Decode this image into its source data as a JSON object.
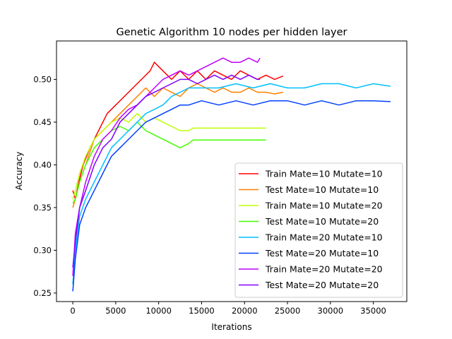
{
  "chart_data": {
    "type": "line",
    "title": "Genetic Algorithm 10 nodes per hidden layer",
    "xlabel": "Iterations",
    "ylabel": "Accuracy",
    "xlim": [
      -1900,
      38900
    ],
    "ylim": [
      0.24,
      0.545
    ],
    "xticks": [
      0,
      5000,
      10000,
      15000,
      20000,
      25000,
      30000,
      35000
    ],
    "yticks": [
      0.25,
      0.3,
      0.35,
      0.4,
      0.45,
      0.5
    ],
    "ytick_labels": [
      "0.25",
      "0.30",
      "0.35",
      "0.40",
      "0.45",
      "0.50"
    ],
    "grid": false,
    "legend_position": "lower-right",
    "series": [
      {
        "name": "Train Mate=10 Mutate=10",
        "color": "#ff0000",
        "points": [
          [
            0,
            0.37
          ],
          [
            300,
            0.36
          ],
          [
            700,
            0.38
          ],
          [
            1200,
            0.4
          ],
          [
            2000,
            0.42
          ],
          [
            3000,
            0.44
          ],
          [
            4000,
            0.46
          ],
          [
            5000,
            0.47
          ],
          [
            6000,
            0.48
          ],
          [
            7000,
            0.49
          ],
          [
            8000,
            0.5
          ],
          [
            9000,
            0.51
          ],
          [
            9500,
            0.52
          ],
          [
            10500,
            0.51
          ],
          [
            11500,
            0.5
          ],
          [
            12500,
            0.51
          ],
          [
            13500,
            0.5
          ],
          [
            14500,
            0.51
          ],
          [
            15500,
            0.5
          ],
          [
            16500,
            0.51
          ],
          [
            17500,
            0.505
          ],
          [
            18500,
            0.5
          ],
          [
            19500,
            0.51
          ],
          [
            20500,
            0.505
          ],
          [
            21500,
            0.5
          ],
          [
            22500,
            0.505
          ],
          [
            23500,
            0.5
          ],
          [
            24500,
            0.504
          ]
        ]
      },
      {
        "name": "Test Mate=10 Mutate=10",
        "color": "#ff8000",
        "points": [
          [
            0,
            0.35
          ],
          [
            300,
            0.36
          ],
          [
            800,
            0.38
          ],
          [
            1500,
            0.4
          ],
          [
            2500,
            0.43
          ],
          [
            3500,
            0.44
          ],
          [
            4500,
            0.45
          ],
          [
            5500,
            0.46
          ],
          [
            6500,
            0.47
          ],
          [
            7500,
            0.48
          ],
          [
            8500,
            0.49
          ],
          [
            9500,
            0.48
          ],
          [
            10500,
            0.49
          ],
          [
            11500,
            0.485
          ],
          [
            12500,
            0.48
          ],
          [
            13500,
            0.49
          ],
          [
            14500,
            0.495
          ],
          [
            15500,
            0.49
          ],
          [
            16500,
            0.485
          ],
          [
            17500,
            0.49
          ],
          [
            18500,
            0.485
          ],
          [
            19500,
            0.485
          ],
          [
            20500,
            0.49
          ],
          [
            21500,
            0.485
          ],
          [
            22500,
            0.485
          ],
          [
            23500,
            0.483
          ],
          [
            24500,
            0.485
          ]
        ]
      },
      {
        "name": "Train Mate=10 Mutate=20",
        "color": "#bfff00",
        "points": [
          [
            0,
            0.36
          ],
          [
            300,
            0.37
          ],
          [
            800,
            0.39
          ],
          [
            1500,
            0.41
          ],
          [
            2500,
            0.43
          ],
          [
            3500,
            0.44
          ],
          [
            4500,
            0.45
          ],
          [
            5500,
            0.455
          ],
          [
            6500,
            0.45
          ],
          [
            7500,
            0.46
          ],
          [
            8500,
            0.45
          ],
          [
            9500,
            0.455
          ],
          [
            10500,
            0.45
          ],
          [
            11500,
            0.445
          ],
          [
            12500,
            0.44
          ],
          [
            13500,
            0.44
          ],
          [
            14000,
            0.443
          ],
          [
            16000,
            0.443
          ],
          [
            18000,
            0.443
          ],
          [
            20000,
            0.443
          ],
          [
            22500,
            0.443
          ]
        ]
      },
      {
        "name": "Test Mate=10 Mutate=20",
        "color": "#40ff00",
        "points": [
          [
            0,
            0.355
          ],
          [
            300,
            0.36
          ],
          [
            800,
            0.38
          ],
          [
            1500,
            0.4
          ],
          [
            2500,
            0.42
          ],
          [
            3500,
            0.43
          ],
          [
            4500,
            0.44
          ],
          [
            5500,
            0.445
          ],
          [
            6500,
            0.44
          ],
          [
            7500,
            0.45
          ],
          [
            8500,
            0.44
          ],
          [
            9500,
            0.435
          ],
          [
            10500,
            0.43
          ],
          [
            11500,
            0.425
          ],
          [
            12500,
            0.42
          ],
          [
            13500,
            0.425
          ],
          [
            14000,
            0.429
          ],
          [
            16000,
            0.429
          ],
          [
            18000,
            0.429
          ],
          [
            20000,
            0.429
          ],
          [
            22500,
            0.429
          ]
        ]
      },
      {
        "name": "Train Mate=20 Mutate=10",
        "color": "#00bfff",
        "points": [
          [
            0,
            0.26
          ],
          [
            300,
            0.3
          ],
          [
            800,
            0.34
          ],
          [
            1500,
            0.36
          ],
          [
            2500,
            0.38
          ],
          [
            3500,
            0.4
          ],
          [
            4500,
            0.42
          ],
          [
            5500,
            0.43
          ],
          [
            6500,
            0.44
          ],
          [
            7500,
            0.45
          ],
          [
            8500,
            0.46
          ],
          [
            9500,
            0.465
          ],
          [
            10500,
            0.47
          ],
          [
            11500,
            0.48
          ],
          [
            12500,
            0.485
          ],
          [
            13500,
            0.49
          ],
          [
            15000,
            0.49
          ],
          [
            17000,
            0.49
          ],
          [
            19000,
            0.495
          ],
          [
            21000,
            0.49
          ],
          [
            23000,
            0.495
          ],
          [
            25000,
            0.49
          ],
          [
            27000,
            0.49
          ],
          [
            29000,
            0.495
          ],
          [
            31000,
            0.495
          ],
          [
            33000,
            0.49
          ],
          [
            35000,
            0.495
          ],
          [
            37000,
            0.492
          ]
        ]
      },
      {
        "name": "Test Mate=20 Mutate=10",
        "color": "#0040ff",
        "points": [
          [
            0,
            0.252
          ],
          [
            300,
            0.29
          ],
          [
            800,
            0.33
          ],
          [
            1500,
            0.35
          ],
          [
            2500,
            0.37
          ],
          [
            3500,
            0.39
          ],
          [
            4500,
            0.41
          ],
          [
            5500,
            0.42
          ],
          [
            6500,
            0.43
          ],
          [
            7500,
            0.44
          ],
          [
            8500,
            0.45
          ],
          [
            9500,
            0.455
          ],
          [
            10500,
            0.46
          ],
          [
            11500,
            0.465
          ],
          [
            12500,
            0.47
          ],
          [
            13500,
            0.47
          ],
          [
            15000,
            0.475
          ],
          [
            17000,
            0.47
          ],
          [
            19000,
            0.475
          ],
          [
            21000,
            0.47
          ],
          [
            23000,
            0.475
          ],
          [
            25000,
            0.475
          ],
          [
            27000,
            0.47
          ],
          [
            29000,
            0.475
          ],
          [
            31000,
            0.47
          ],
          [
            33000,
            0.475
          ],
          [
            35000,
            0.475
          ],
          [
            37000,
            0.474
          ]
        ]
      },
      {
        "name": "Train Mate=20 Mutate=20",
        "color": "#bf00ff",
        "points": [
          [
            0,
            0.27
          ],
          [
            300,
            0.32
          ],
          [
            800,
            0.35
          ],
          [
            1500,
            0.38
          ],
          [
            2500,
            0.41
          ],
          [
            3500,
            0.43
          ],
          [
            4500,
            0.44
          ],
          [
            5500,
            0.455
          ],
          [
            6500,
            0.465
          ],
          [
            7500,
            0.47
          ],
          [
            8500,
            0.48
          ],
          [
            9500,
            0.49
          ],
          [
            10500,
            0.5
          ],
          [
            11500,
            0.505
          ],
          [
            12500,
            0.51
          ],
          [
            13500,
            0.505
          ],
          [
            14500,
            0.51
          ],
          [
            15500,
            0.515
          ],
          [
            16500,
            0.52
          ],
          [
            17500,
            0.525
          ],
          [
            18500,
            0.52
          ],
          [
            19500,
            0.52
          ],
          [
            20500,
            0.525
          ],
          [
            21500,
            0.52
          ],
          [
            21800,
            0.525
          ]
        ]
      },
      {
        "name": "Test Mate=20 Mutate=20",
        "color": "#8000ff",
        "points": [
          [
            0,
            0.28
          ],
          [
            300,
            0.31
          ],
          [
            800,
            0.35
          ],
          [
            1500,
            0.37
          ],
          [
            2500,
            0.4
          ],
          [
            3500,
            0.42
          ],
          [
            4500,
            0.43
          ],
          [
            5500,
            0.45
          ],
          [
            6500,
            0.46
          ],
          [
            7500,
            0.47
          ],
          [
            8500,
            0.48
          ],
          [
            9500,
            0.485
          ],
          [
            10500,
            0.49
          ],
          [
            11500,
            0.495
          ],
          [
            12500,
            0.5
          ],
          [
            13500,
            0.5
          ],
          [
            14500,
            0.495
          ],
          [
            15500,
            0.5
          ],
          [
            16500,
            0.505
          ],
          [
            17500,
            0.5
          ],
          [
            18500,
            0.505
          ],
          [
            19500,
            0.5
          ],
          [
            20500,
            0.505
          ],
          [
            21500,
            0.5
          ],
          [
            21800,
            0.5
          ]
        ]
      }
    ]
  }
}
